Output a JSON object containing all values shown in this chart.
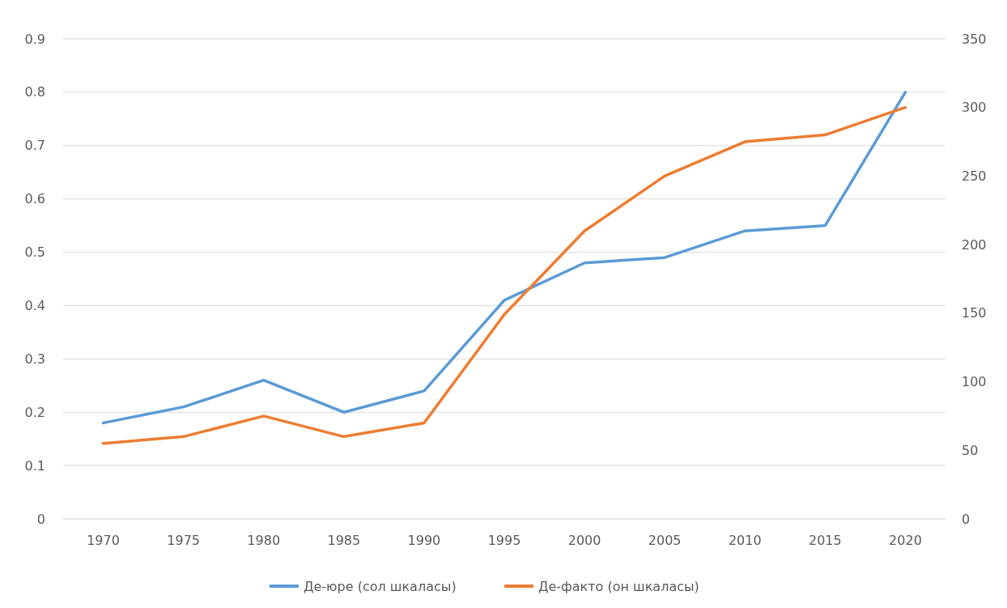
{
  "chart_data": {
    "type": "line",
    "categories": [
      "1970",
      "1975",
      "1980",
      "1985",
      "1990",
      "1995",
      "2000",
      "2005",
      "2010",
      "2015",
      "2020"
    ],
    "series": [
      {
        "name": "Де-юре (сол шкаласы)",
        "color": "#5b9bd5",
        "values": [
          0.18,
          0.21,
          0.26,
          0.2,
          0.24,
          0.41,
          0.48,
          0.49,
          0.54,
          0.55,
          0.8
        ]
      },
      {
        "name": "Де-факто (он шкаласы)",
        "color": "#ed7d31",
        "axis": "y2",
        "values": [
          55,
          60,
          75,
          60,
          70,
          149,
          210,
          250,
          275,
          280,
          300
        ]
      }
    ],
    "ylim": [
      0,
      0.9
    ],
    "yticks": [
      0,
      0.1,
      0.2,
      0.3,
      0.4,
      0.5,
      0.6,
      0.7,
      0.8,
      0.9
    ],
    "y2lim": [
      0,
      350
    ],
    "y2ticks": [
      0,
      50,
      100,
      150,
      200,
      250,
      300,
      350
    ],
    "grid": "y",
    "legend": "bottom",
    "marker": "none",
    "line_style": "solid"
  }
}
